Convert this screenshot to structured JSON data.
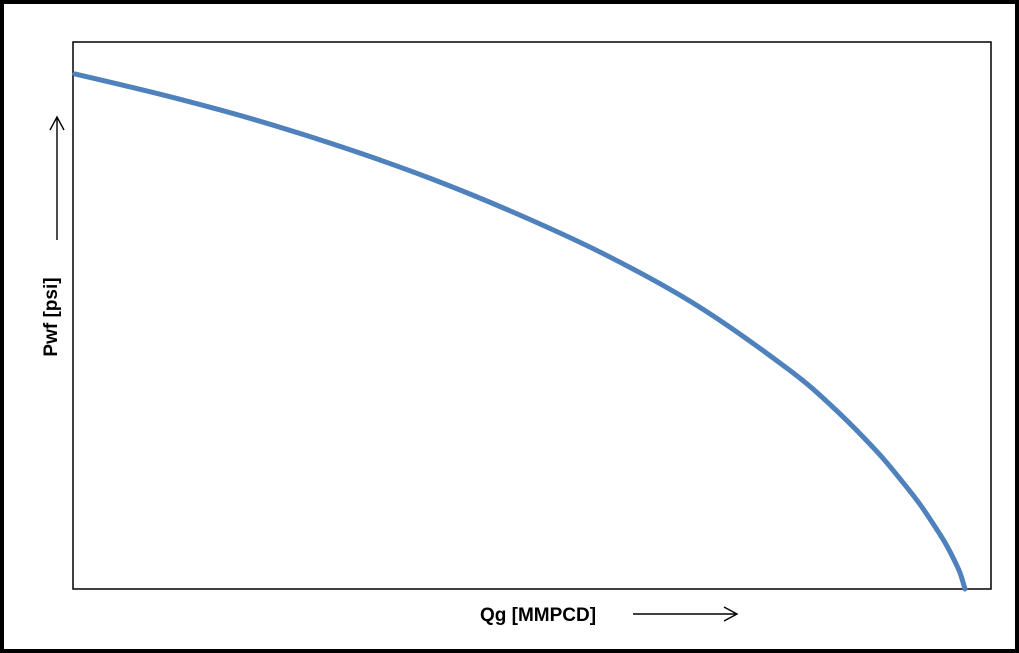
{
  "chart_data": {
    "type": "line",
    "title": "",
    "xlabel": "Qg [MMPCD]",
    "ylabel": "Pwf [psi]",
    "x_axis_arrow": "right-arrow-icon",
    "y_axis_arrow": "up-arrow-icon",
    "xlim": [
      0,
      1
    ],
    "ylim": [
      0,
      1
    ],
    "tick_labels": false,
    "grid": false,
    "legend": "none",
    "series": [
      {
        "color": "#4f81bd",
        "x": [
          0.0,
          0.1,
          0.2,
          0.3,
          0.4,
          0.5,
          0.6,
          0.7,
          0.8,
          0.85,
          0.9,
          0.93,
          0.95,
          0.97,
          0.98,
          0.99,
          0.995,
          1.0
        ],
        "y": [
          0.945,
          0.906,
          0.862,
          0.811,
          0.753,
          0.686,
          0.61,
          0.519,
          0.405,
          0.336,
          0.254,
          0.196,
          0.154,
          0.105,
          0.078,
          0.046,
          0.027,
          0.0
        ]
      }
    ]
  }
}
